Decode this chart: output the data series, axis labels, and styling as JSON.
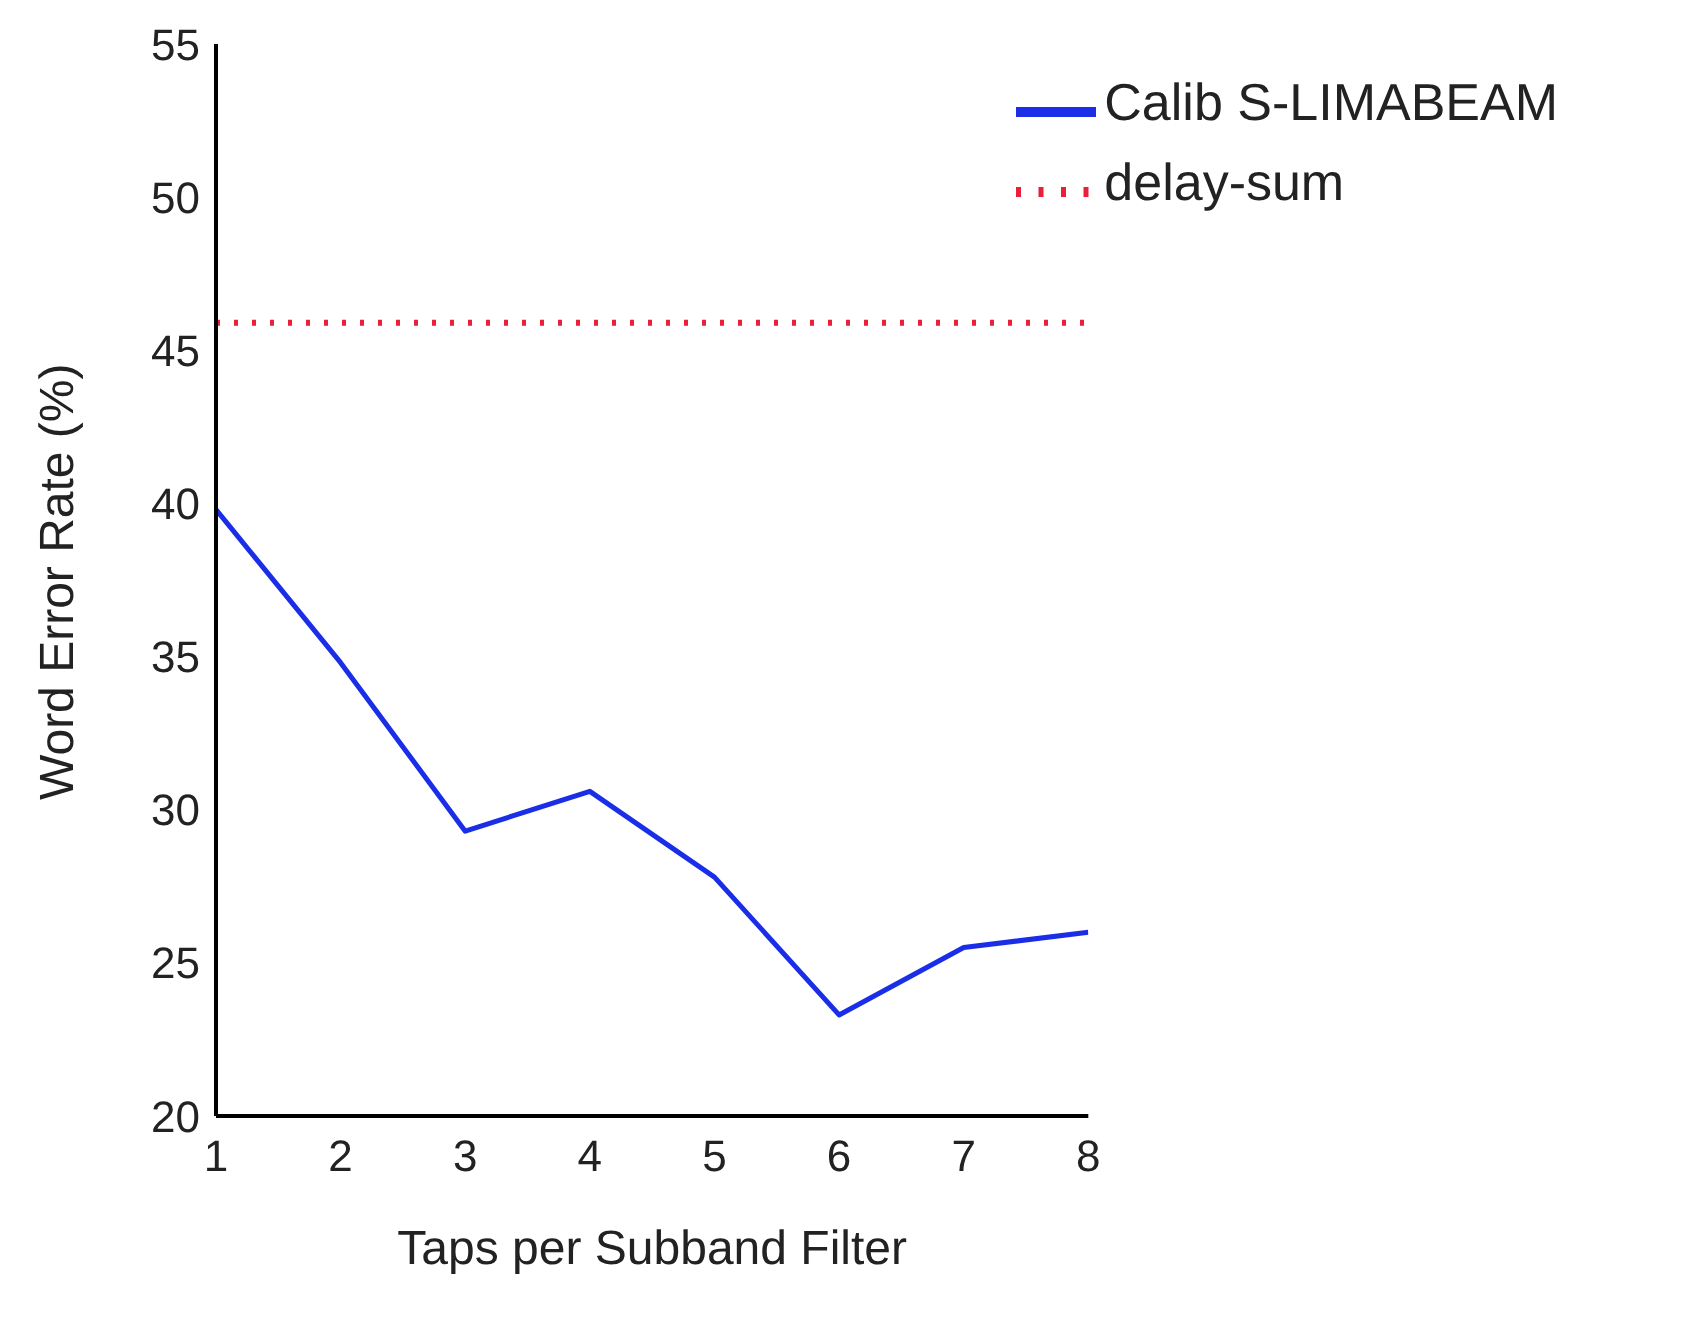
{
  "chart_data": {
    "type": "line",
    "xlabel": "Taps per Subband Filter",
    "ylabel": "Word Error Rate (%)",
    "x": [
      1,
      2,
      3,
      4,
      5,
      6,
      7,
      8
    ],
    "series": [
      {
        "name": "delay-sum",
        "color": "#e8203a",
        "line_style": "dotted",
        "values": [
          45.9,
          45.9,
          45.9,
          45.9,
          45.9,
          45.9,
          45.9,
          45.9
        ]
      },
      {
        "name": "Calib S-LIMABEAM",
        "color": "#1a2ee8",
        "line_style": "solid",
        "values": [
          39.8,
          34.8,
          29.3,
          30.6,
          27.8,
          23.3,
          25.5,
          26.0
        ]
      }
    ],
    "xlim": [
      1,
      8
    ],
    "xticks": [
      1,
      2,
      3,
      4,
      5,
      6,
      7,
      8
    ],
    "ylim": [
      20,
      55
    ],
    "yticks": [
      20,
      25,
      30,
      35,
      40,
      45,
      50,
      55
    ],
    "grid": false,
    "legend": "top right",
    "marker": "none"
  }
}
